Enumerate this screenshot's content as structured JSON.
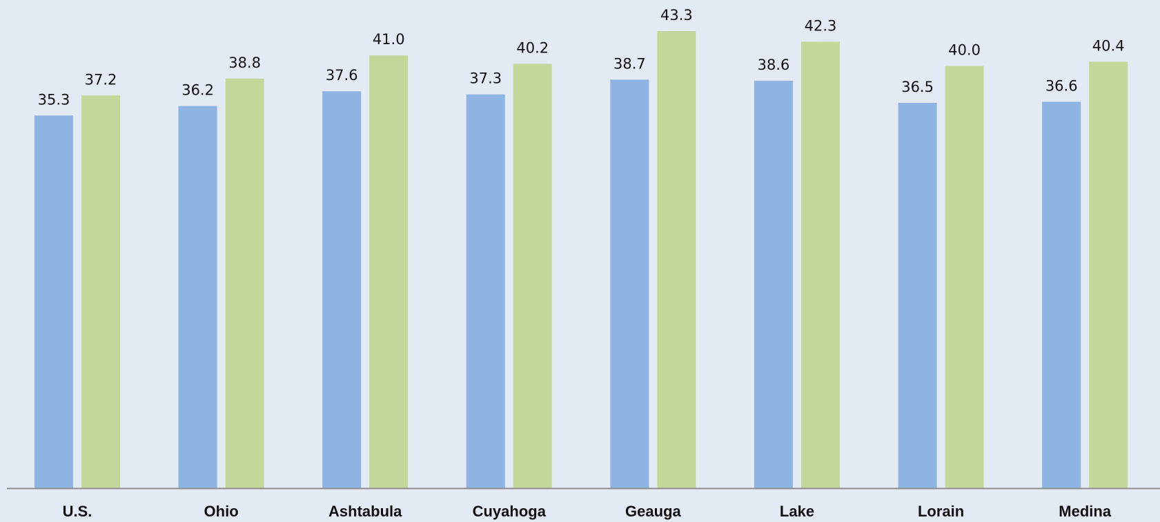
{
  "chart_data": {
    "type": "bar",
    "categories": [
      "U.S.",
      "Ohio",
      "Ashtabula",
      "Cuyahoga",
      "Geauga",
      "Lake",
      "Lorain",
      "Medina"
    ],
    "series": [
      {
        "values": [
          35.3,
          36.2,
          37.6,
          37.3,
          38.7,
          38.6,
          36.5,
          36.6
        ],
        "color": "#8eb4e3"
      },
      {
        "values": [
          37.2,
          38.8,
          41.0,
          40.2,
          43.3,
          42.3,
          40.0,
          40.4
        ],
        "color": "#c4d79b"
      }
    ],
    "ylim": [
      0,
      43.3
    ],
    "grid": false,
    "legend": "none",
    "value_labels": true,
    "axis_color": "#8c8c8c",
    "background": "#e4eaf4"
  }
}
